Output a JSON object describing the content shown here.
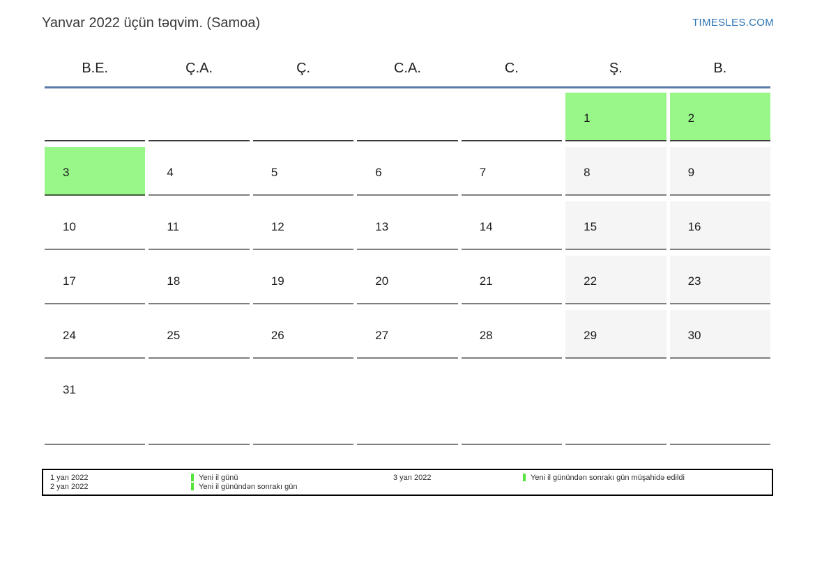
{
  "header": {
    "title": "Yanvar 2022 üçün təqvim. (Samoa)",
    "site_link": "TIMESLES.COM"
  },
  "weekdays": [
    "B.E.",
    "Ç.A.",
    "Ç.",
    "C.A.",
    "C.",
    "Ş.",
    "B."
  ],
  "weeks": [
    [
      {
        "day": "",
        "type": "blank"
      },
      {
        "day": "",
        "type": "blank"
      },
      {
        "day": "",
        "type": "blank"
      },
      {
        "day": "",
        "type": "blank"
      },
      {
        "day": "",
        "type": "blank"
      },
      {
        "day": "1",
        "type": "holiday"
      },
      {
        "day": "2",
        "type": "holiday"
      }
    ],
    [
      {
        "day": "3",
        "type": "holiday"
      },
      {
        "day": "4",
        "type": "day"
      },
      {
        "day": "5",
        "type": "day"
      },
      {
        "day": "6",
        "type": "day"
      },
      {
        "day": "7",
        "type": "day"
      },
      {
        "day": "8",
        "type": "weekend"
      },
      {
        "day": "9",
        "type": "weekend"
      }
    ],
    [
      {
        "day": "10",
        "type": "day"
      },
      {
        "day": "11",
        "type": "day"
      },
      {
        "day": "12",
        "type": "day"
      },
      {
        "day": "13",
        "type": "day"
      },
      {
        "day": "14",
        "type": "day"
      },
      {
        "day": "15",
        "type": "weekend"
      },
      {
        "day": "16",
        "type": "weekend"
      }
    ],
    [
      {
        "day": "17",
        "type": "day"
      },
      {
        "day": "18",
        "type": "day"
      },
      {
        "day": "19",
        "type": "day"
      },
      {
        "day": "20",
        "type": "day"
      },
      {
        "day": "21",
        "type": "day"
      },
      {
        "day": "22",
        "type": "weekend"
      },
      {
        "day": "23",
        "type": "weekend"
      }
    ],
    [
      {
        "day": "24",
        "type": "day"
      },
      {
        "day": "25",
        "type": "day"
      },
      {
        "day": "26",
        "type": "day"
      },
      {
        "day": "27",
        "type": "day"
      },
      {
        "day": "28",
        "type": "day"
      },
      {
        "day": "29",
        "type": "weekend"
      },
      {
        "day": "30",
        "type": "weekend"
      }
    ],
    [
      {
        "day": "31",
        "type": "day"
      },
      {
        "day": "",
        "type": "blank"
      },
      {
        "day": "",
        "type": "blank"
      },
      {
        "day": "",
        "type": "blank"
      },
      {
        "day": "",
        "type": "blank"
      },
      {
        "day": "",
        "type": "blank"
      },
      {
        "day": "",
        "type": "blank"
      }
    ]
  ],
  "legend": {
    "dates_left": [
      "1 yan 2022",
      "2 yan 2022"
    ],
    "entries_left": [
      "Yeni il günü",
      "Yeni il günündən sonrakı gün"
    ],
    "dates_right": [
      "3 yan 2022"
    ],
    "entries_right": [
      "Yeni il günündən sonrakı gün müşahidə edildi"
    ]
  },
  "colors": {
    "holiday_green": "#98f788",
    "weekend_gray": "#f5f5f5",
    "header_line_blue": "#5b7ca6",
    "link_blue": "#2e75b6",
    "legend_marker_green": "#55e53a"
  }
}
